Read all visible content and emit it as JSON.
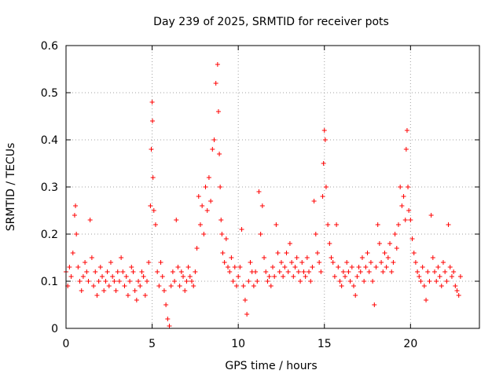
{
  "chart_data": {
    "type": "scatter",
    "title": "Day 239 of 2025, SRMTID for receiver pots",
    "xlabel": "GPS time / hours",
    "ylabel": "SRMTID / TECUs",
    "xlim": [
      0,
      24
    ],
    "ylim": [
      0,
      0.6
    ],
    "xticks": [
      0,
      5,
      10,
      15,
      20
    ],
    "xtick_labels": [
      "0",
      "5",
      "10",
      "15",
      "20"
    ],
    "yticks": [
      0,
      0.1,
      0.2,
      0.3,
      0.4,
      0.5,
      0.6
    ],
    "ytick_labels": [
      "0",
      "0.1",
      "0.2",
      "0.3",
      "0.4",
      "0.5",
      "0.6"
    ],
    "grid": true,
    "marker": "plus",
    "color": "#ff0000",
    "series": [
      {
        "name": "SRMTID",
        "x": [
          0.0,
          0.1,
          0.2,
          0.3,
          0.4,
          0.5,
          0.55,
          0.6,
          0.7,
          0.8,
          0.9,
          1.0,
          1.1,
          1.2,
          1.3,
          1.4,
          1.5,
          1.6,
          1.7,
          1.8,
          1.9,
          2.0,
          2.1,
          2.2,
          2.3,
          2.4,
          2.5,
          2.6,
          2.7,
          2.8,
          2.9,
          3.0,
          3.1,
          3.2,
          3.3,
          3.4,
          3.5,
          3.6,
          3.7,
          3.8,
          3.9,
          4.0,
          4.1,
          4.2,
          4.3,
          4.4,
          4.5,
          4.6,
          4.7,
          4.8,
          4.9,
          4.95,
          5.0,
          5.02,
          5.05,
          5.1,
          5.2,
          5.3,
          5.4,
          5.5,
          5.6,
          5.7,
          5.8,
          5.9,
          6.0,
          6.1,
          6.2,
          6.3,
          6.4,
          6.5,
          6.6,
          6.7,
          6.8,
          6.9,
          7.0,
          7.1,
          7.2,
          7.3,
          7.4,
          7.5,
          7.6,
          7.7,
          7.8,
          7.9,
          8.0,
          8.1,
          8.2,
          8.3,
          8.4,
          8.5,
          8.6,
          8.7,
          8.8,
          8.85,
          8.9,
          8.95,
          9.0,
          9.05,
          9.1,
          9.2,
          9.3,
          9.4,
          9.5,
          9.6,
          9.7,
          9.8,
          9.9,
          10.0,
          10.1,
          10.2,
          10.3,
          10.4,
          10.5,
          10.6,
          10.7,
          10.8,
          10.9,
          11.0,
          11.1,
          11.2,
          11.3,
          11.4,
          11.5,
          11.6,
          11.7,
          11.8,
          11.9,
          12.0,
          12.1,
          12.2,
          12.3,
          12.4,
          12.5,
          12.6,
          12.7,
          12.8,
          12.9,
          13.0,
          13.1,
          13.2,
          13.3,
          13.4,
          13.5,
          13.6,
          13.7,
          13.8,
          13.9,
          14.0,
          14.1,
          14.2,
          14.3,
          14.4,
          14.5,
          14.6,
          14.7,
          14.8,
          14.9,
          14.95,
          15.0,
          15.05,
          15.1,
          15.2,
          15.3,
          15.4,
          15.5,
          15.6,
          15.7,
          15.8,
          15.9,
          16.0,
          16.1,
          16.2,
          16.3,
          16.4,
          16.5,
          16.6,
          16.7,
          16.8,
          16.9,
          17.0,
          17.1,
          17.2,
          17.3,
          17.4,
          17.5,
          17.6,
          17.7,
          17.8,
          17.9,
          18.0,
          18.1,
          18.2,
          18.3,
          18.4,
          18.5,
          18.6,
          18.7,
          18.8,
          18.9,
          19.0,
          19.1,
          19.2,
          19.3,
          19.4,
          19.5,
          19.6,
          19.7,
          19.75,
          19.8,
          19.85,
          19.9,
          20.0,
          20.1,
          20.2,
          20.3,
          20.4,
          20.5,
          20.6,
          20.7,
          20.8,
          20.9,
          21.0,
          21.1,
          21.2,
          21.3,
          21.4,
          21.5,
          21.6,
          21.7,
          21.8,
          21.9,
          22.0,
          22.1,
          22.2,
          22.3,
          22.4,
          22.5,
          22.6,
          22.7,
          22.8,
          22.9
        ],
        "y": [
          0.12,
          0.09,
          0.13,
          0.11,
          0.16,
          0.24,
          0.26,
          0.2,
          0.13,
          0.1,
          0.08,
          0.11,
          0.14,
          0.12,
          0.1,
          0.23,
          0.15,
          0.09,
          0.12,
          0.07,
          0.1,
          0.13,
          0.11,
          0.08,
          0.1,
          0.12,
          0.09,
          0.14,
          0.11,
          0.1,
          0.08,
          0.12,
          0.1,
          0.15,
          0.12,
          0.09,
          0.11,
          0.07,
          0.1,
          0.13,
          0.12,
          0.08,
          0.06,
          0.1,
          0.09,
          0.12,
          0.11,
          0.07,
          0.1,
          0.14,
          0.26,
          0.38,
          0.48,
          0.44,
          0.32,
          0.25,
          0.22,
          0.12,
          0.09,
          0.14,
          0.11,
          0.08,
          0.05,
          0.02,
          0.005,
          0.09,
          0.12,
          0.1,
          0.23,
          0.13,
          0.09,
          0.12,
          0.11,
          0.08,
          0.1,
          0.13,
          0.11,
          0.1,
          0.09,
          0.12,
          0.17,
          0.28,
          0.22,
          0.26,
          0.2,
          0.3,
          0.25,
          0.32,
          0.27,
          0.38,
          0.4,
          0.52,
          0.56,
          0.46,
          0.37,
          0.3,
          0.23,
          0.2,
          0.16,
          0.14,
          0.19,
          0.13,
          0.12,
          0.15,
          0.1,
          0.13,
          0.09,
          0.11,
          0.13,
          0.21,
          0.09,
          0.06,
          0.03,
          0.1,
          0.14,
          0.12,
          0.09,
          0.12,
          0.1,
          0.29,
          0.2,
          0.26,
          0.15,
          0.12,
          0.1,
          0.11,
          0.09,
          0.13,
          0.11,
          0.22,
          0.16,
          0.12,
          0.14,
          0.11,
          0.13,
          0.16,
          0.12,
          0.18,
          0.14,
          0.11,
          0.13,
          0.15,
          0.12,
          0.1,
          0.14,
          0.12,
          0.11,
          0.15,
          0.12,
          0.1,
          0.13,
          0.27,
          0.2,
          0.16,
          0.14,
          0.12,
          0.28,
          0.35,
          0.42,
          0.4,
          0.3,
          0.22,
          0.18,
          0.15,
          0.14,
          0.11,
          0.22,
          0.13,
          0.1,
          0.09,
          0.12,
          0.11,
          0.14,
          0.12,
          0.1,
          0.13,
          0.09,
          0.07,
          0.11,
          0.13,
          0.12,
          0.15,
          0.1,
          0.13,
          0.16,
          0.12,
          0.14,
          0.1,
          0.05,
          0.13,
          0.22,
          0.18,
          0.14,
          0.12,
          0.16,
          0.13,
          0.15,
          0.18,
          0.12,
          0.14,
          0.2,
          0.17,
          0.22,
          0.3,
          0.26,
          0.28,
          0.23,
          0.38,
          0.42,
          0.3,
          0.25,
          0.23,
          0.19,
          0.16,
          0.14,
          0.12,
          0.11,
          0.1,
          0.13,
          0.09,
          0.06,
          0.12,
          0.1,
          0.24,
          0.15,
          0.12,
          0.1,
          0.13,
          0.11,
          0.09,
          0.14,
          0.12,
          0.1,
          0.22,
          0.13,
          0.11,
          0.12,
          0.09,
          0.08,
          0.07,
          0.11
        ]
      }
    ]
  }
}
